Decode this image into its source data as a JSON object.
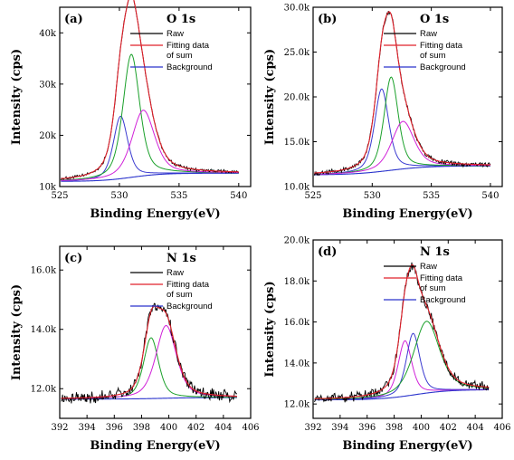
{
  "colors": {
    "raw": "#000000",
    "fit_sum": "#e0202a",
    "background": "#2a33cc",
    "comp_magenta": "#d020d8",
    "comp_green": "#1aa02a",
    "comp_blue": "#3a3ad0"
  },
  "chart_data": [
    {
      "type": "line",
      "label": "(a)",
      "title": "O 1s",
      "xlabel": "Binding Energy(eV)",
      "ylabel": "Intensity (cps)",
      "xlim": [
        525,
        541
      ],
      "xticks": [
        "525",
        "530",
        "535",
        "540"
      ],
      "xtick_values": [
        525,
        530,
        535,
        540
      ],
      "ylim": [
        10000,
        45000
      ],
      "yticks": [
        "10k",
        "20k",
        "30k",
        "40k"
      ],
      "ytick_values": [
        10000,
        20000,
        30000,
        40000
      ],
      "legend": [
        "Raw",
        "Fitting data of sum",
        "Background"
      ],
      "legend_lines": [
        "Raw",
        "Fitting data",
        "of sum",
        "Background"
      ],
      "legend_position": "top-right",
      "bg_start": 11000,
      "bg_end": 12600,
      "bg_center": 531.0,
      "bg_width": 1.3,
      "components": [
        {
          "center": 530.1,
          "amp": 12200,
          "width": 0.6,
          "color": "comp_blue"
        },
        {
          "center": 531.0,
          "amp": 24000,
          "width": 0.7,
          "color": "comp_green"
        },
        {
          "center": 532.0,
          "amp": 12800,
          "width": 0.95,
          "color": "comp_magenta"
        }
      ],
      "noise": 250
    },
    {
      "type": "line",
      "label": "(b)",
      "title": "O 1s",
      "xlabel": "Binding Energy(eV)",
      "ylabel": "Intensity (cps)",
      "xlim": [
        525,
        541
      ],
      "xticks": [
        "525",
        "530",
        "535",
        "540"
      ],
      "xtick_values": [
        525,
        530,
        535,
        540
      ],
      "ylim": [
        10000,
        30000
      ],
      "yticks": [
        "10.0k",
        "15.0k",
        "20.0k",
        "25.0k",
        "30.0k"
      ],
      "ytick_values": [
        10000,
        15000,
        20000,
        25000,
        30000
      ],
      "legend": [
        "Raw",
        "Fitting data of sum",
        "Background"
      ],
      "legend_lines": [
        "Raw",
        "Fitting data",
        "of sum",
        "Background"
      ],
      "legend_position": "top-right",
      "bg_start": 11300,
      "bg_end": 12300,
      "bg_center": 531.5,
      "bg_width": 1.6,
      "components": [
        {
          "center": 530.8,
          "amp": 9200,
          "width": 0.6,
          "color": "comp_blue"
        },
        {
          "center": 531.6,
          "amp": 10400,
          "width": 0.6,
          "color": "comp_green"
        },
        {
          "center": 532.6,
          "amp": 5300,
          "width": 0.95,
          "color": "comp_magenta"
        }
      ],
      "noise": 200
    },
    {
      "type": "line",
      "label": "(c)",
      "title": "N 1s",
      "xlabel": "Binding Energy(eV)",
      "ylabel": "Intensity (cps)",
      "xlim": [
        392,
        406
      ],
      "xticks": [
        "392",
        "394",
        "396",
        "398",
        "400",
        "402",
        "404",
        "406"
      ],
      "xtick_values": [
        392,
        394,
        396,
        398,
        400,
        402,
        404,
        406
      ],
      "ylim": [
        11000,
        16800
      ],
      "yticks": [
        "12.0k",
        "14.0k",
        "16.0k"
      ],
      "ytick_values": [
        12000,
        14000,
        16000
      ],
      "legend": [
        "Raw",
        "Fitting data of sum",
        "Background"
      ],
      "legend_lines": [
        "Raw",
        "Fitting data",
        "of sum",
        "Background"
      ],
      "legend_position": "top-right",
      "bg_start": 11650,
      "bg_end": 11700,
      "bg_center": 399.5,
      "bg_width": 1.2,
      "components": [
        {
          "center": 398.7,
          "amp": 2050,
          "width": 0.55,
          "color": "comp_green"
        },
        {
          "center": 399.8,
          "amp": 2450,
          "width": 0.75,
          "color": "comp_magenta"
        }
      ],
      "noise": 160
    },
    {
      "type": "line",
      "label": "(d)",
      "title": "N 1s",
      "xlabel": "Binding Energy(eV)",
      "ylabel": "Intensity (cps)",
      "xlim": [
        392,
        406
      ],
      "xticks": [
        "392",
        "394",
        "396",
        "398",
        "400",
        "402",
        "404",
        "406"
      ],
      "xtick_values": [
        392,
        394,
        396,
        398,
        400,
        402,
        404,
        406
      ],
      "ylim": [
        11300,
        20000
      ],
      "yticks": [
        "12.0k",
        "14.0k",
        "16.0k",
        "18.0k",
        "20.0k"
      ],
      "ytick_values": [
        12000,
        14000,
        16000,
        18000,
        20000
      ],
      "legend": [
        "Raw",
        "Fitting data of sum",
        "Background"
      ],
      "legend_lines": [
        "Raw",
        "Fitting data",
        "of sum",
        "Background"
      ],
      "legend_position": "top-right",
      "bg_start": 12200,
      "bg_end": 12700,
      "bg_center": 399.5,
      "bg_width": 1.3,
      "components": [
        {
          "center": 398.8,
          "amp": 2700,
          "width": 0.5,
          "color": "comp_magenta"
        },
        {
          "center": 399.4,
          "amp": 3000,
          "width": 0.5,
          "color": "comp_blue"
        },
        {
          "center": 400.4,
          "amp": 3500,
          "width": 0.95,
          "color": "comp_green"
        }
      ],
      "noise": 180
    }
  ]
}
